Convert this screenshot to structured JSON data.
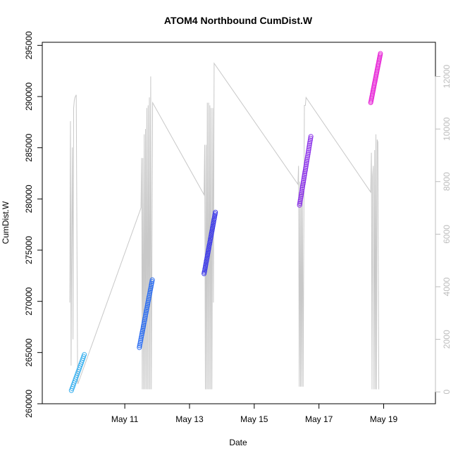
{
  "chart_data": {
    "type": "scatter",
    "title": "ATOM4 Northbound CumDist.W",
    "xlabel": "Date",
    "ylabel": "CumDist.W",
    "xlim": [
      -1.55,
      10.6
    ],
    "ylim": [
      260000,
      295300
    ],
    "ylim_right": [
      -450,
      13300
    ],
    "x_ticks": [
      {
        "value": 1,
        "label": "May 11"
      },
      {
        "value": 3,
        "label": "May 13"
      },
      {
        "value": 5,
        "label": "May 15"
      },
      {
        "value": 7,
        "label": "May 17"
      },
      {
        "value": 9,
        "label": "May 19"
      }
    ],
    "y_ticks": [
      260000,
      265000,
      270000,
      275000,
      280000,
      285000,
      290000,
      295000
    ],
    "y_ticks_right": [
      0,
      2000,
      4000,
      6000,
      8000,
      10000,
      12000
    ],
    "grid": false,
    "series": [
      {
        "color": "#3ab0ee",
        "x0": -0.65,
        "x1": -0.25,
        "y0": 261300,
        "y1": 264800,
        "n": 20
      },
      {
        "color": "#2a6cf0",
        "x0": 1.45,
        "x1": 1.85,
        "y0": 265500,
        "y1": 272100,
        "n": 40
      },
      {
        "color": "#3a37e8",
        "x0": 3.45,
        "x1": 3.8,
        "y0": 272700,
        "y1": 278700,
        "n": 40
      },
      {
        "color": "#8a30e8",
        "x0": 6.4,
        "x1": 6.75,
        "y0": 279400,
        "y1": 286100,
        "n": 40
      },
      {
        "color": "#e830d8",
        "x0": 8.6,
        "x1": 8.9,
        "y0": 289400,
        "y1": 294200,
        "n": 40
      }
    ],
    "line_series": {
      "color": "#c8c8c8",
      "points": [
        [
          -0.7,
          3400
        ],
        [
          -0.68,
          10300
        ],
        [
          -0.66,
          1000
        ],
        [
          -0.64,
          6000
        ],
        [
          -0.62,
          9300
        ],
        [
          -0.6,
          2000
        ],
        [
          -0.58,
          10800
        ],
        [
          -0.56,
          11100
        ],
        [
          -0.54,
          11200
        ],
        [
          -0.5,
          11300
        ],
        [
          -0.46,
          700
        ],
        [
          -0.45,
          300
        ],
        [
          1.5,
          7000
        ],
        [
          1.52,
          8900
        ],
        [
          1.54,
          100
        ],
        [
          1.56,
          8900
        ],
        [
          1.58,
          100
        ],
        [
          1.6,
          9800
        ],
        [
          1.62,
          100
        ],
        [
          1.64,
          10000
        ],
        [
          1.66,
          100
        ],
        [
          1.68,
          10800
        ],
        [
          1.7,
          100
        ],
        [
          1.72,
          10900
        ],
        [
          1.74,
          100
        ],
        [
          1.76,
          11200
        ],
        [
          1.78,
          100
        ],
        [
          1.8,
          12000
        ],
        [
          1.82,
          100
        ],
        [
          1.86,
          11000
        ],
        [
          3.45,
          7500
        ],
        [
          3.47,
          9400
        ],
        [
          3.49,
          100
        ],
        [
          3.51,
          9400
        ],
        [
          3.53,
          100
        ],
        [
          3.55,
          11000
        ],
        [
          3.57,
          100
        ],
        [
          3.59,
          11000
        ],
        [
          3.61,
          100
        ],
        [
          3.63,
          10900
        ],
        [
          3.65,
          100
        ],
        [
          3.67,
          10800
        ],
        [
          3.69,
          100
        ],
        [
          3.72,
          10800
        ],
        [
          3.74,
          3400
        ],
        [
          3.76,
          12500
        ],
        [
          6.35,
          7900
        ],
        [
          6.37,
          8600
        ],
        [
          6.39,
          200
        ],
        [
          6.41,
          8000
        ],
        [
          6.43,
          200
        ],
        [
          6.45,
          7600
        ],
        [
          6.47,
          200
        ],
        [
          6.49,
          7900
        ],
        [
          6.51,
          200
        ],
        [
          6.55,
          10900
        ],
        [
          6.58,
          10900
        ],
        [
          6.6,
          11200
        ],
        [
          8.6,
          7600
        ],
        [
          8.62,
          9100
        ],
        [
          8.64,
          100
        ],
        [
          8.66,
          8200
        ],
        [
          8.68,
          8600
        ],
        [
          8.7,
          100
        ],
        [
          8.72,
          9200
        ],
        [
          8.74,
          100
        ],
        [
          8.76,
          9800
        ],
        [
          8.78,
          100
        ],
        [
          8.8,
          9600
        ],
        [
          8.82,
          9500
        ],
        [
          8.85,
          100
        ]
      ]
    }
  }
}
